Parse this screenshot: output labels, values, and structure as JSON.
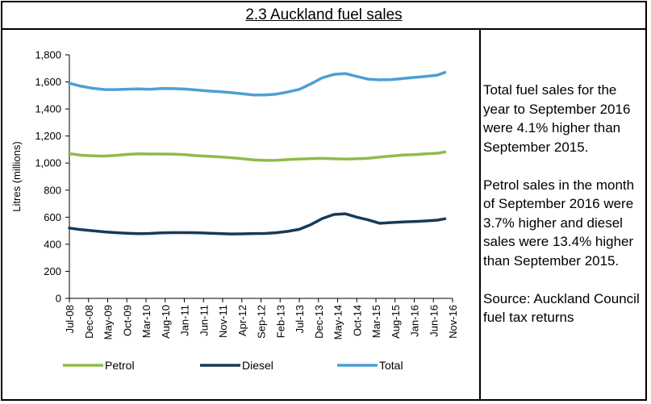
{
  "title": "2.3 Auckland fuel sales",
  "side_notes": {
    "paragraph_1": "Total fuel sales for the year to September 2016 were 4.1% higher than September 2015.",
    "paragraph_2": "Petrol sales in the month of September 2016 were 3.7% higher and diesel sales were 13.4% higher than September 2015.",
    "paragraph_3": "Source: Auckland Council fuel tax returns"
  },
  "chart_data": {
    "type": "line",
    "title": "",
    "xlabel": "",
    "ylabel": "Litres (millions)",
    "ylim": [
      0,
      1800
    ],
    "yticks": [
      0,
      200,
      400,
      600,
      800,
      1000,
      1200,
      1400,
      1600,
      1800
    ],
    "ytick_labels": [
      "0",
      "200",
      "400",
      "600",
      "800",
      "1,000",
      "1,200",
      "1,400",
      "1,600",
      "1,800"
    ],
    "xtick_labels": [
      "Jul-08",
      "Dec-08",
      "May-09",
      "Oct-09",
      "Mar-10",
      "Aug-10",
      "Jan-11",
      "Jun-11",
      "Nov-11",
      "Apr-12",
      "Sep-12",
      "Feb-13",
      "Jul-13",
      "Dec-13",
      "May-14",
      "Oct-14",
      "Mar-15",
      "Aug-15",
      "Jan-16",
      "Jun-16",
      "Nov-16"
    ],
    "grid": "none",
    "legend_position": "bottom",
    "x": [
      "Jul-08",
      "Oct-08",
      "Jan-09",
      "Apr-09",
      "Jul-09",
      "Oct-09",
      "Jan-10",
      "Apr-10",
      "Jul-10",
      "Oct-10",
      "Jan-11",
      "Apr-11",
      "Jul-11",
      "Oct-11",
      "Jan-12",
      "Apr-12",
      "Jul-12",
      "Oct-12",
      "Jan-13",
      "Apr-13",
      "Jul-13",
      "Oct-13",
      "Jan-14",
      "Apr-14",
      "Jul-14",
      "Oct-14",
      "Jan-15",
      "Apr-15",
      "Jul-15",
      "Oct-15",
      "Jan-16",
      "Apr-16",
      "Jul-16",
      "Sep-16"
    ],
    "series": [
      {
        "name": "Petrol",
        "color": "#8fbb4a",
        "values": [
          1070,
          1058,
          1053,
          1052,
          1057,
          1064,
          1068,
          1067,
          1067,
          1066,
          1062,
          1055,
          1050,
          1046,
          1040,
          1033,
          1024,
          1020,
          1021,
          1026,
          1030,
          1033,
          1035,
          1032,
          1030,
          1032,
          1036,
          1045,
          1052,
          1060,
          1063,
          1068,
          1073,
          1082
        ]
      },
      {
        "name": "Diesel",
        "color": "#173a57",
        "values": [
          520,
          508,
          500,
          492,
          486,
          481,
          478,
          480,
          484,
          486,
          486,
          485,
          482,
          479,
          476,
          477,
          479,
          480,
          485,
          495,
          510,
          545,
          590,
          620,
          625,
          600,
          580,
          555,
          560,
          565,
          568,
          572,
          578,
          588
        ]
      },
      {
        "name": "Total",
        "color": "#4c9fd4",
        "values": [
          1590,
          1568,
          1553,
          1544,
          1543,
          1546,
          1548,
          1545,
          1551,
          1550,
          1547,
          1541,
          1533,
          1528,
          1521,
          1512,
          1503,
          1503,
          1510,
          1525,
          1545,
          1585,
          1630,
          1655,
          1662,
          1640,
          1620,
          1615,
          1617,
          1625,
          1633,
          1640,
          1650,
          1670
        ]
      }
    ]
  }
}
